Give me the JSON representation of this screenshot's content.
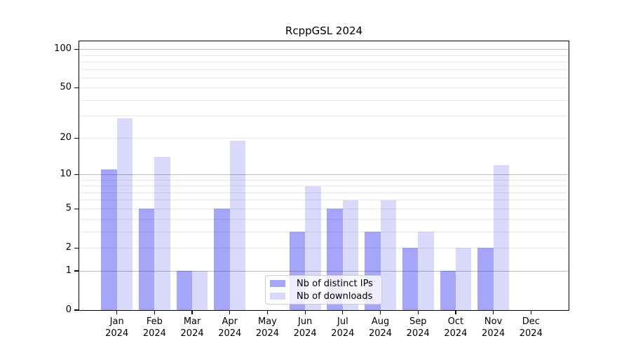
{
  "chart_data": {
    "type": "bar",
    "title": "RcppGSL 2024",
    "x_categories": [
      "Jan",
      "Feb",
      "Mar",
      "Apr",
      "May",
      "Jun",
      "Jul",
      "Aug",
      "Sep",
      "Oct",
      "Nov",
      "Dec"
    ],
    "x_year_label": "2024",
    "series": [
      {
        "name": "Nb of distinct IPs",
        "color": "rgba(0,0,238,0.35)",
        "values": [
          11,
          5,
          1,
          5,
          0,
          3,
          5,
          3,
          2,
          1,
          2,
          0
        ]
      },
      {
        "name": "Nb of downloads",
        "color": "rgba(0,0,238,0.15)",
        "values": [
          29,
          14,
          1,
          19,
          0,
          8,
          6,
          6,
          3,
          2,
          12,
          0
        ]
      }
    ],
    "yscale": "log1p",
    "ylim": [
      0,
      115.6
    ],
    "yticks": [
      100,
      50,
      20,
      10,
      5,
      2,
      1,
      0
    ],
    "gridlines_major": [
      1,
      10,
      100
    ],
    "gridlines_minor": [
      2,
      3,
      4,
      5,
      6,
      7,
      8,
      9,
      20,
      30,
      40,
      50,
      60,
      70,
      80,
      90
    ],
    "grid": true,
    "legend_position": "lower-center",
    "colors": {
      "grid_major": "#bcbcbc",
      "grid_minor": "#e9e9e9",
      "spine": "#000000",
      "text": "#000000",
      "background": "#ffffff"
    }
  }
}
